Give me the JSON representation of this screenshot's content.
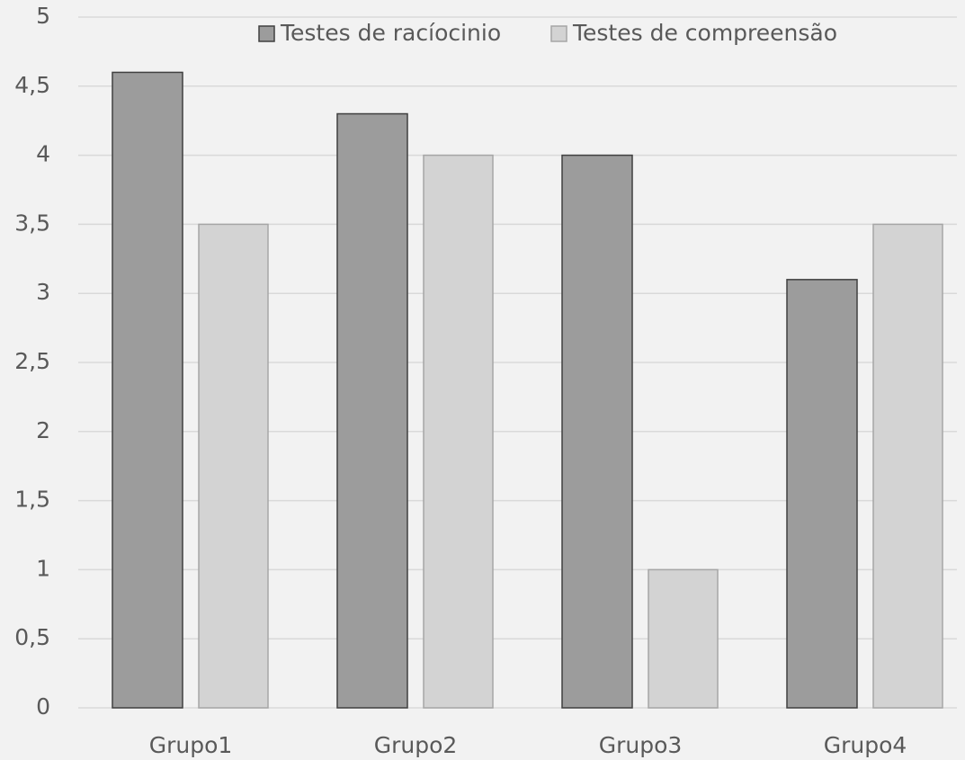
{
  "chart_data": {
    "type": "bar",
    "categories": [
      "Grupo1",
      "Grupo2",
      "Grupo3",
      "Grupo4"
    ],
    "series": [
      {
        "name": "Testes de racíocinio",
        "color": "#9c9c9c",
        "values": [
          4.6,
          4.3,
          4.0,
          3.1
        ]
      },
      {
        "name": "Testes de compreensão",
        "color": "#d3d3d3",
        "values": [
          3.5,
          4.0,
          1.0,
          3.5
        ]
      }
    ],
    "ylim": [
      0,
      5
    ],
    "yticks": [
      0,
      {
        "value": 0.5,
        "label": "0,5"
      },
      1,
      {
        "value": 1.5,
        "label": "1,5"
      },
      2,
      {
        "value": 2.5,
        "label": "2,5"
      },
      3,
      {
        "value": 3.5,
        "label": "3,5"
      },
      4,
      {
        "value": 4.5,
        "label": "4,5"
      },
      5
    ],
    "grid": true,
    "legend": "top"
  }
}
